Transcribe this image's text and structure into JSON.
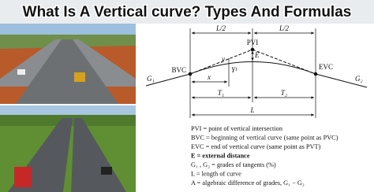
{
  "title": "What Is A Vertical curve? Types And Formulas",
  "diagram": {
    "half_left": "L/2",
    "half_right": "L/2",
    "pvi": "PVI",
    "bvc": "BVC",
    "evc": "EVC",
    "g1": "G₁",
    "g2": "G₂",
    "e": "E",
    "y": "y",
    "y1": "Y¹",
    "x": "x",
    "t1": "T₁",
    "t2": "T₂",
    "l": "L"
  },
  "definitions": [
    "PVI = point of vertical intersection",
    "BVC = beginning of vertical curve (same point as PVC)",
    "EVC = end of vertical curve (same point as PVT)",
    "E = external distance",
    "G₁ , G₂ = grades of tangents (%)",
    "L = length of curve",
    "A = algebraic difference of grades,  G₁ − G₂"
  ]
}
